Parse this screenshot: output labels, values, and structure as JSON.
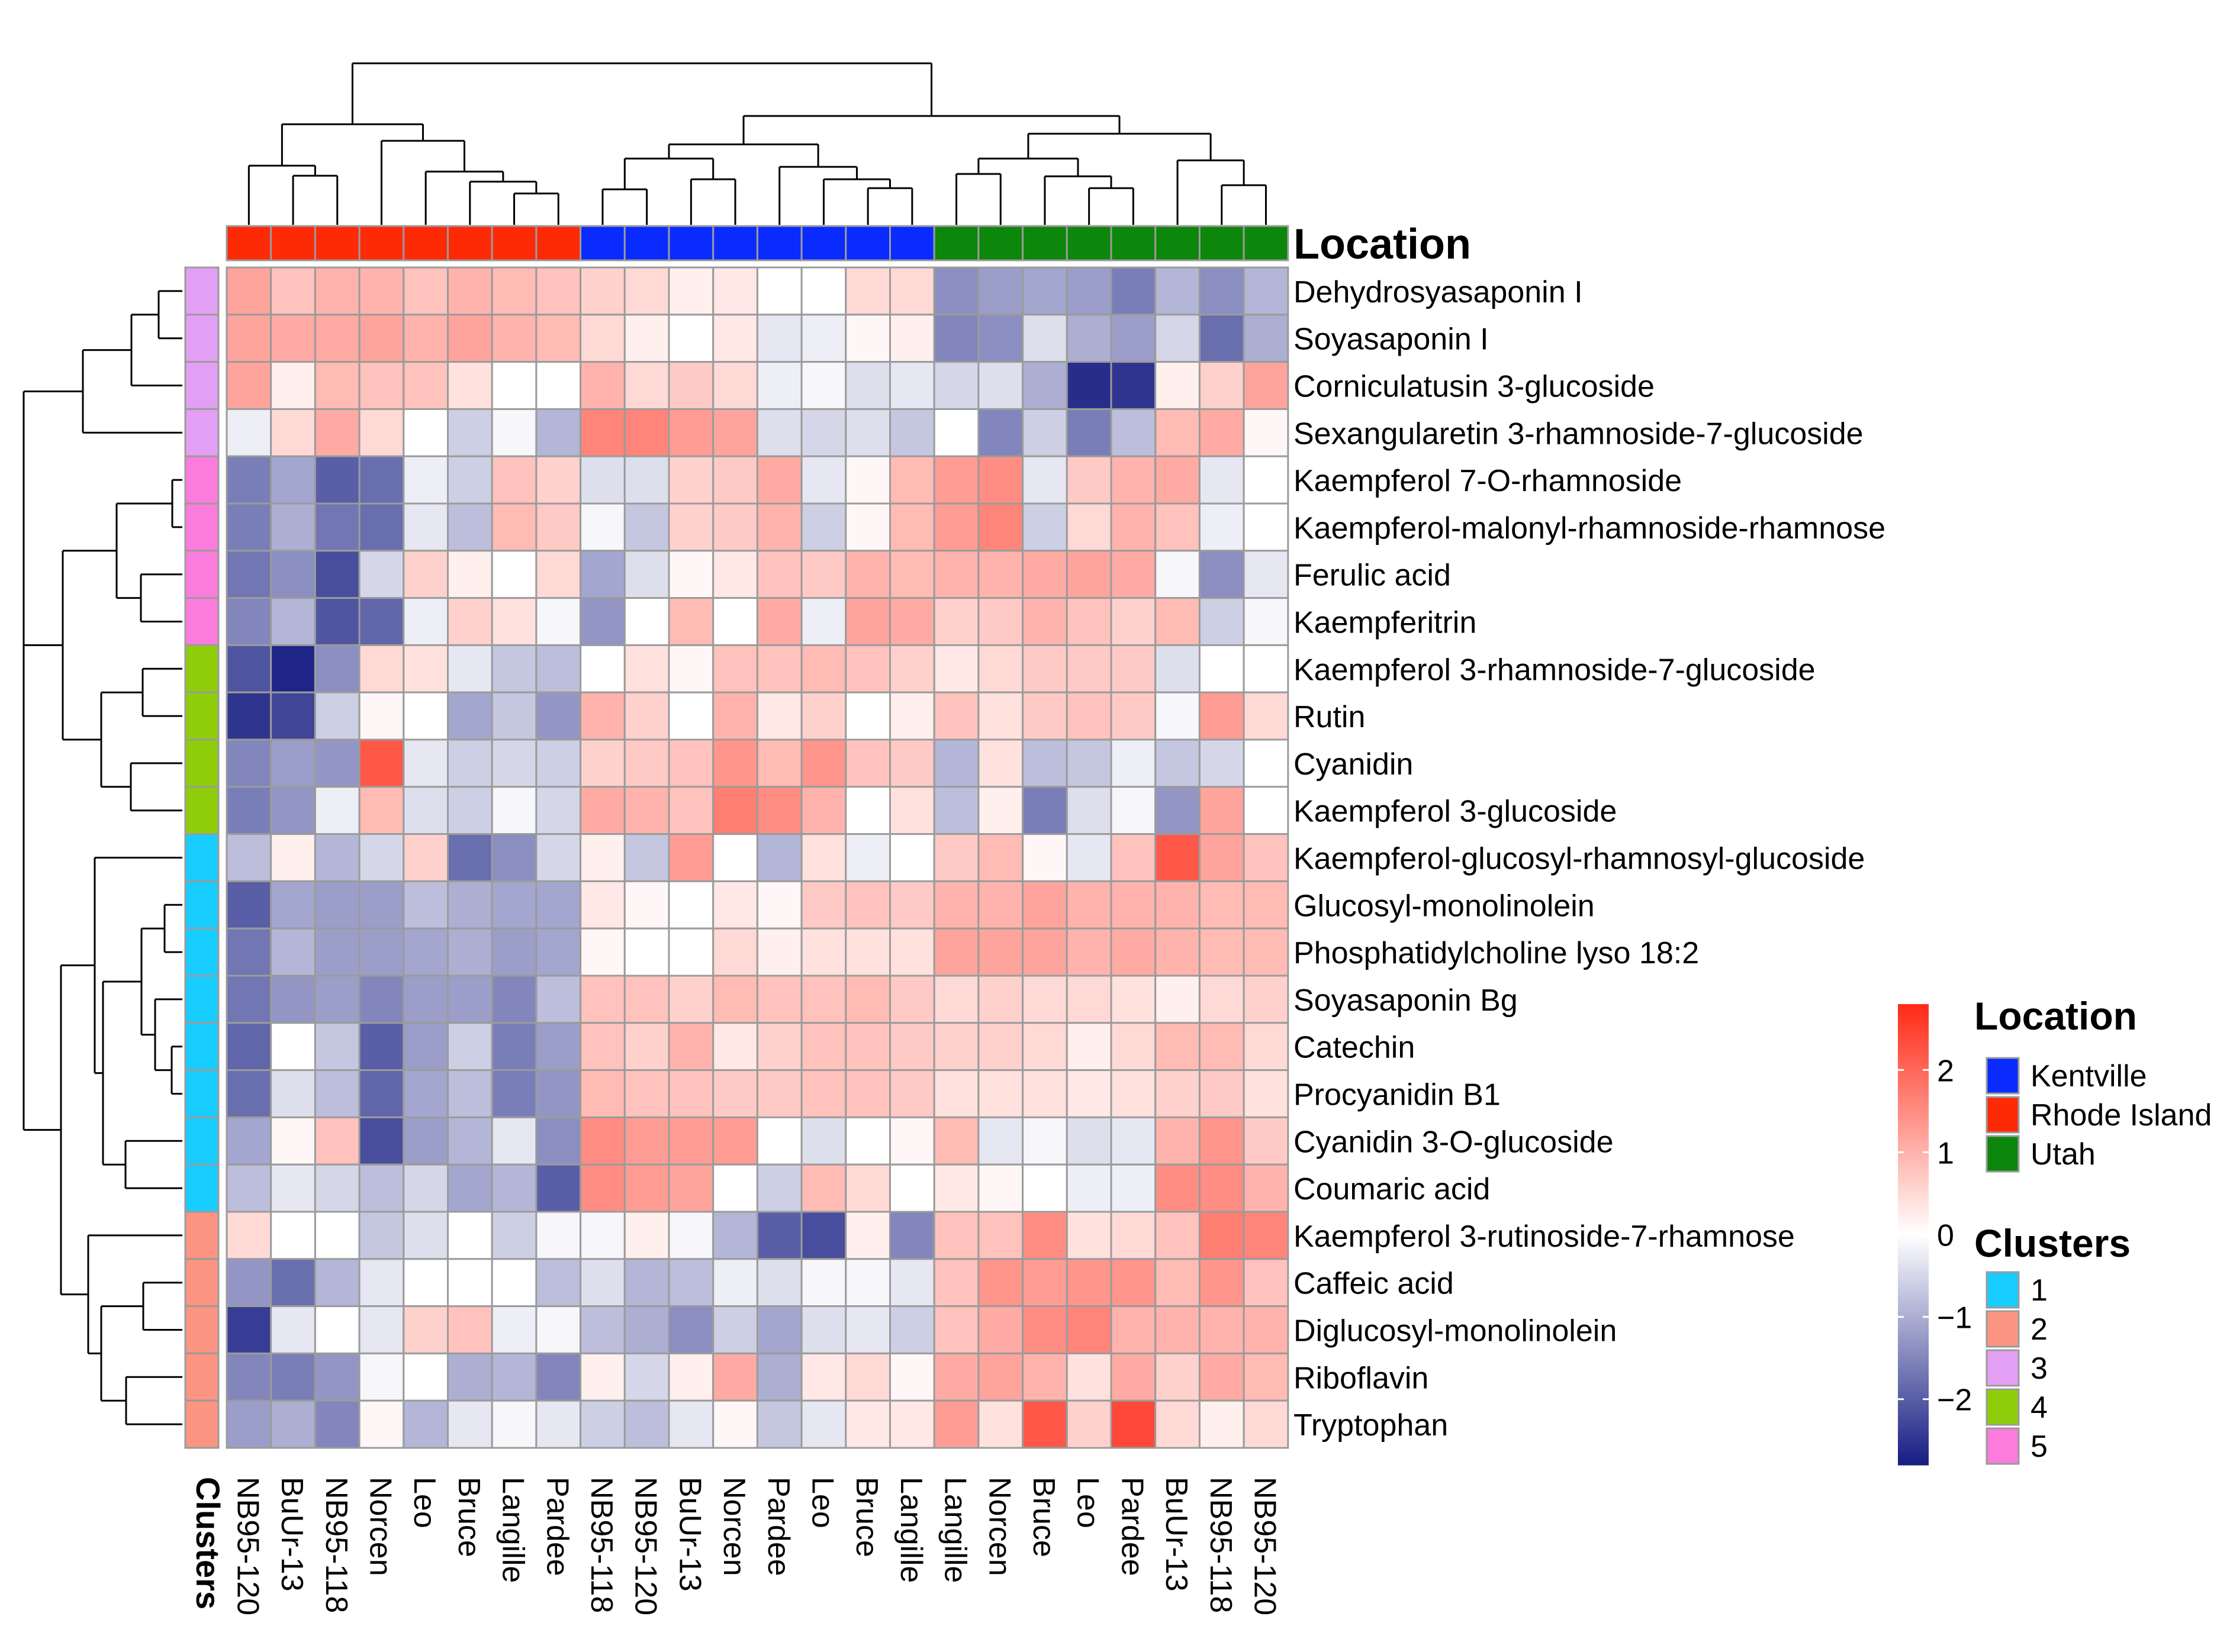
{
  "chart_data": {
    "type": "heatmap",
    "columns": [
      "NB95-120",
      "BuUr-13",
      "NB95-118",
      "Norcen",
      "Leo",
      "Bruce",
      "Langille",
      "Pardee",
      "NB95-118",
      "NB95-120",
      "BuUr-13",
      "Norcen",
      "Pardee",
      "Leo",
      "Bruce",
      "Langille",
      "Langille",
      "Norcen",
      "Bruce",
      "Leo",
      "Pardee",
      "BuUr-13",
      "NB95-118",
      "NB95-120"
    ],
    "column_location": [
      "Rhode Island",
      "Rhode Island",
      "Rhode Island",
      "Rhode Island",
      "Rhode Island",
      "Rhode Island",
      "Rhode Island",
      "Rhode Island",
      "Kentville",
      "Kentville",
      "Kentville",
      "Kentville",
      "Kentville",
      "Kentville",
      "Kentville",
      "Kentville",
      "Utah",
      "Utah",
      "Utah",
      "Utah",
      "Utah",
      "Utah",
      "Utah",
      "Utah"
    ],
    "rows": [
      "Dehydrosyasaponin I",
      "Soyasaponin I",
      "Corniculatusin 3-glucoside",
      "Sexangularetin 3-rhamnoside-7-glucoside",
      "Kaempferol 7-O-rhamnoside",
      "Kaempferol-malonyl-rhamnoside-rhamnose",
      "Ferulic acid",
      "Kaempferitrin",
      "Kaempferol 3-rhamnoside-7-glucoside",
      "Rutin",
      "Cyanidin",
      "Kaempferol 3-glucoside",
      "Kaempferol-glucosyl-rhamnosyl-glucoside",
      "Glucosyl-monolinolein",
      "Phosphatidylcholine lyso 18:2",
      "Soyasaponin Bg",
      "Catechin",
      "Procyanidin B1",
      "Cyanidin 3-O-glucoside",
      "Coumaric acid",
      "Kaempferol 3-rutinoside-7-rhamnose",
      "Caffeic acid",
      "Diglucosyl-monolinolein",
      "Riboflavin",
      "Tryptophan"
    ],
    "row_cluster": [
      3,
      3,
      3,
      3,
      5,
      5,
      5,
      5,
      4,
      4,
      4,
      4,
      1,
      1,
      1,
      1,
      1,
      1,
      1,
      1,
      2,
      2,
      2,
      2,
      2
    ],
    "values": [
      [
        1.2,
        0.8,
        1.0,
        1.0,
        0.8,
        1.0,
        0.9,
        0.8,
        0.6,
        0.5,
        0.2,
        0.3,
        0.0,
        0.0,
        0.5,
        0.5,
        -1.4,
        -1.2,
        -1.1,
        -1.2,
        -1.6,
        -0.9,
        -1.4,
        -0.9
      ],
      [
        1.2,
        1.1,
        1.1,
        1.2,
        1.0,
        1.2,
        1.0,
        0.9,
        0.5,
        0.2,
        0.0,
        0.3,
        -0.3,
        -0.2,
        0.1,
        0.2,
        -1.5,
        -1.4,
        -0.4,
        -1.0,
        -1.2,
        -0.5,
        -1.8,
        -1.0
      ],
      [
        1.2,
        0.2,
        0.9,
        0.8,
        0.8,
        0.4,
        0.0,
        0.0,
        1.0,
        0.5,
        0.7,
        0.5,
        -0.2,
        -0.1,
        -0.4,
        -0.3,
        -0.5,
        -0.4,
        -1.0,
        -2.6,
        -2.5,
        0.2,
        0.6,
        1.2
      ],
      [
        -0.2,
        0.5,
        1.1,
        0.5,
        0.0,
        -0.6,
        -0.1,
        -0.9,
        1.6,
        1.6,
        1.3,
        1.2,
        -0.4,
        -0.5,
        -0.4,
        -0.7,
        0.0,
        -1.5,
        -0.6,
        -1.6,
        -0.8,
        0.9,
        1.1,
        0.1
      ],
      [
        -1.6,
        -1.1,
        -2.0,
        -1.8,
        -0.2,
        -0.6,
        0.8,
        0.6,
        -0.4,
        -0.4,
        0.6,
        0.7,
        1.1,
        -0.3,
        0.1,
        0.9,
        1.3,
        1.5,
        -0.3,
        0.7,
        1.0,
        1.1,
        -0.3,
        0.0
      ],
      [
        -1.6,
        -1.0,
        -1.7,
        -1.8,
        -0.3,
        -0.8,
        0.9,
        0.7,
        -0.1,
        -0.7,
        0.6,
        0.7,
        1.0,
        -0.6,
        0.1,
        0.9,
        1.3,
        1.6,
        -0.6,
        0.5,
        1.0,
        0.8,
        -0.2,
        0.0
      ],
      [
        -1.7,
        -1.4,
        -2.2,
        -0.5,
        0.6,
        0.2,
        0.0,
        0.5,
        -1.1,
        -0.4,
        0.1,
        0.3,
        0.8,
        0.7,
        1.0,
        0.9,
        1.0,
        1.0,
        1.1,
        1.2,
        1.1,
        -0.1,
        -1.4,
        -0.3
      ],
      [
        -1.5,
        -0.9,
        -2.1,
        -1.9,
        -0.2,
        0.6,
        0.4,
        -0.1,
        -1.3,
        0.0,
        0.9,
        0.0,
        1.1,
        -0.2,
        1.2,
        1.1,
        0.6,
        0.7,
        1.0,
        0.8,
        0.6,
        0.9,
        -0.6,
        -0.1
      ],
      [
        -2.1,
        -2.7,
        -1.4,
        0.5,
        0.4,
        -0.3,
        -0.7,
        -0.8,
        0.0,
        0.4,
        0.1,
        0.8,
        0.8,
        0.9,
        0.8,
        0.6,
        0.3,
        0.5,
        0.7,
        0.7,
        0.7,
        -0.4,
        0.0,
        0.0
      ],
      [
        -2.5,
        -2.3,
        -0.6,
        0.1,
        0.0,
        -1.1,
        -0.7,
        -1.3,
        1.0,
        0.6,
        0.0,
        1.0,
        0.3,
        0.6,
        0.0,
        0.2,
        0.8,
        0.4,
        0.7,
        0.8,
        0.7,
        -0.1,
        1.3,
        0.5
      ],
      [
        -1.5,
        -1.2,
        -1.3,
        2.2,
        -0.3,
        -0.6,
        -0.5,
        -0.6,
        0.6,
        0.7,
        0.8,
        1.4,
        0.9,
        1.4,
        0.8,
        0.7,
        -0.9,
        0.4,
        -0.8,
        -0.7,
        -0.2,
        -0.7,
        -0.5,
        0.0
      ],
      [
        -1.6,
        -1.3,
        -0.2,
        0.9,
        -0.4,
        -0.6,
        -0.1,
        -0.5,
        1.1,
        1.0,
        0.8,
        1.7,
        1.5,
        1.0,
        0.0,
        0.4,
        -0.8,
        0.2,
        -1.6,
        -0.4,
        -0.1,
        -1.3,
        1.2,
        0.0
      ],
      [
        -0.8,
        0.2,
        -0.9,
        -0.5,
        0.6,
        -1.8,
        -1.4,
        -0.5,
        0.2,
        -0.7,
        1.3,
        0.0,
        -0.9,
        0.4,
        -0.2,
        0.0,
        0.7,
        0.9,
        0.1,
        -0.3,
        0.8,
        2.2,
        1.2,
        0.8
      ],
      [
        -2.0,
        -1.1,
        -1.2,
        -1.2,
        -0.8,
        -1.0,
        -1.1,
        -1.1,
        0.3,
        0.1,
        0.0,
        0.3,
        0.1,
        0.7,
        0.8,
        0.7,
        1.0,
        1.0,
        1.2,
        1.0,
        1.0,
        1.0,
        0.9,
        0.9
      ],
      [
        -1.7,
        -0.9,
        -1.2,
        -1.2,
        -1.1,
        -1.0,
        -1.2,
        -1.1,
        0.1,
        0.0,
        0.0,
        0.5,
        0.2,
        0.4,
        0.4,
        0.4,
        1.2,
        1.2,
        1.2,
        1.0,
        1.1,
        1.0,
        0.9,
        0.9
      ],
      [
        -1.7,
        -1.3,
        -1.2,
        -1.5,
        -1.2,
        -1.2,
        -1.5,
        -0.8,
        0.8,
        0.8,
        0.6,
        0.9,
        0.8,
        0.8,
        0.9,
        0.7,
        0.5,
        0.6,
        0.5,
        0.5,
        0.4,
        0.2,
        0.5,
        0.6
      ],
      [
        -1.9,
        0.0,
        -0.7,
        -2.0,
        -1.2,
        -0.6,
        -1.6,
        -1.2,
        0.8,
        0.6,
        1.0,
        0.3,
        0.6,
        0.8,
        0.8,
        0.7,
        0.6,
        0.6,
        0.5,
        0.2,
        0.5,
        0.9,
        0.9,
        0.5
      ],
      [
        -1.8,
        -0.4,
        -0.8,
        -1.9,
        -1.1,
        -0.8,
        -1.6,
        -1.3,
        0.9,
        0.8,
        0.8,
        0.7,
        0.7,
        0.8,
        0.8,
        0.7,
        0.4,
        0.4,
        0.4,
        0.3,
        0.4,
        0.6,
        0.7,
        0.4
      ],
      [
        -1.1,
        0.1,
        0.8,
        -2.2,
        -1.2,
        -0.9,
        -0.3,
        -1.4,
        1.5,
        1.3,
        1.3,
        1.3,
        0.0,
        -0.4,
        0.0,
        0.1,
        0.9,
        -0.3,
        -0.1,
        -0.4,
        -0.3,
        1.0,
        1.4,
        0.7
      ],
      [
        -0.8,
        -0.3,
        -0.5,
        -0.8,
        -0.5,
        -1.1,
        -0.9,
        -2.0,
        1.5,
        1.3,
        1.2,
        0.0,
        -0.6,
        0.9,
        0.5,
        0.0,
        0.3,
        0.1,
        0.0,
        -0.2,
        -0.2,
        1.5,
        1.5,
        1.0
      ],
      [
        0.5,
        0.0,
        0.0,
        -0.7,
        -0.4,
        0.0,
        -0.6,
        -0.1,
        -0.1,
        0.2,
        -0.1,
        -0.9,
        -2.0,
        -2.2,
        0.2,
        -1.5,
        0.8,
        0.8,
        1.5,
        0.4,
        0.5,
        0.8,
        1.7,
        1.6
      ],
      [
        -1.3,
        -1.8,
        -0.9,
        -0.3,
        0.0,
        0.0,
        0.0,
        -0.8,
        -0.4,
        -0.9,
        -0.8,
        -0.2,
        -0.4,
        -0.1,
        -0.1,
        -0.3,
        0.8,
        1.4,
        1.3,
        1.4,
        1.4,
        0.9,
        1.4,
        0.8
      ],
      [
        -2.4,
        -0.3,
        0.0,
        -0.3,
        0.6,
        0.8,
        -0.2,
        -0.1,
        -0.8,
        -1.0,
        -1.4,
        -0.6,
        -1.1,
        -0.4,
        -0.3,
        -0.6,
        0.8,
        1.1,
        1.5,
        1.6,
        1.0,
        1.0,
        1.0,
        1.0
      ],
      [
        -1.5,
        -1.6,
        -1.3,
        -0.1,
        0.0,
        -1.0,
        -0.9,
        -1.5,
        0.2,
        -0.5,
        0.2,
        1.1,
        -1.0,
        0.3,
        0.5,
        0.1,
        1.1,
        1.2,
        1.0,
        0.4,
        1.1,
        0.6,
        1.1,
        0.9
      ],
      [
        -1.2,
        -1.0,
        -1.5,
        0.1,
        -0.9,
        -0.3,
        -0.1,
        -0.3,
        -0.6,
        -0.8,
        -0.3,
        0.1,
        -0.7,
        -0.3,
        0.3,
        0.3,
        1.3,
        0.4,
        2.2,
        0.6,
        2.4,
        0.5,
        0.2,
        0.5
      ]
    ],
    "color_scale": {
      "min": -2.8,
      "max": 2.8,
      "low": "#161d82",
      "mid": "#ffffff",
      "high": "#ff2a17",
      "ticks": [
        2,
        1,
        0,
        -1,
        -2
      ]
    },
    "legend": {
      "scale_ticks": [
        "2",
        "1",
        "0",
        "−1",
        "−2"
      ],
      "location_title": "Location",
      "location_items": [
        {
          "label": "Kentville",
          "color": "#0a2bfd"
        },
        {
          "label": "Rhode Island",
          "color": "#fe2a06"
        },
        {
          "label": "Utah",
          "color": "#0c860b"
        }
      ],
      "clusters_title": "Clusters",
      "cluster_items": [
        {
          "label": "1",
          "color": "#18cdff"
        },
        {
          "label": "2",
          "color": "#fb9582"
        },
        {
          "label": "3",
          "color": "#e39ff4"
        },
        {
          "label": "4",
          "color": "#8fcd0b"
        },
        {
          "label": "5",
          "color": "#fb7cdc"
        }
      ]
    },
    "annotation_labels": {
      "location": "Location",
      "clusters": "Clusters"
    }
  },
  "colors": {
    "Kentville": "#0a2bfd",
    "Rhode Island": "#fe2a06",
    "Utah": "#0c860b",
    "cluster_1": "#18cdff",
    "cluster_2": "#fb9582",
    "cluster_3": "#e39ff4",
    "cluster_4": "#8fcd0b",
    "cluster_5": "#fb7cdc",
    "grid": "#9b9b9b",
    "dendrogram": "#000000"
  }
}
